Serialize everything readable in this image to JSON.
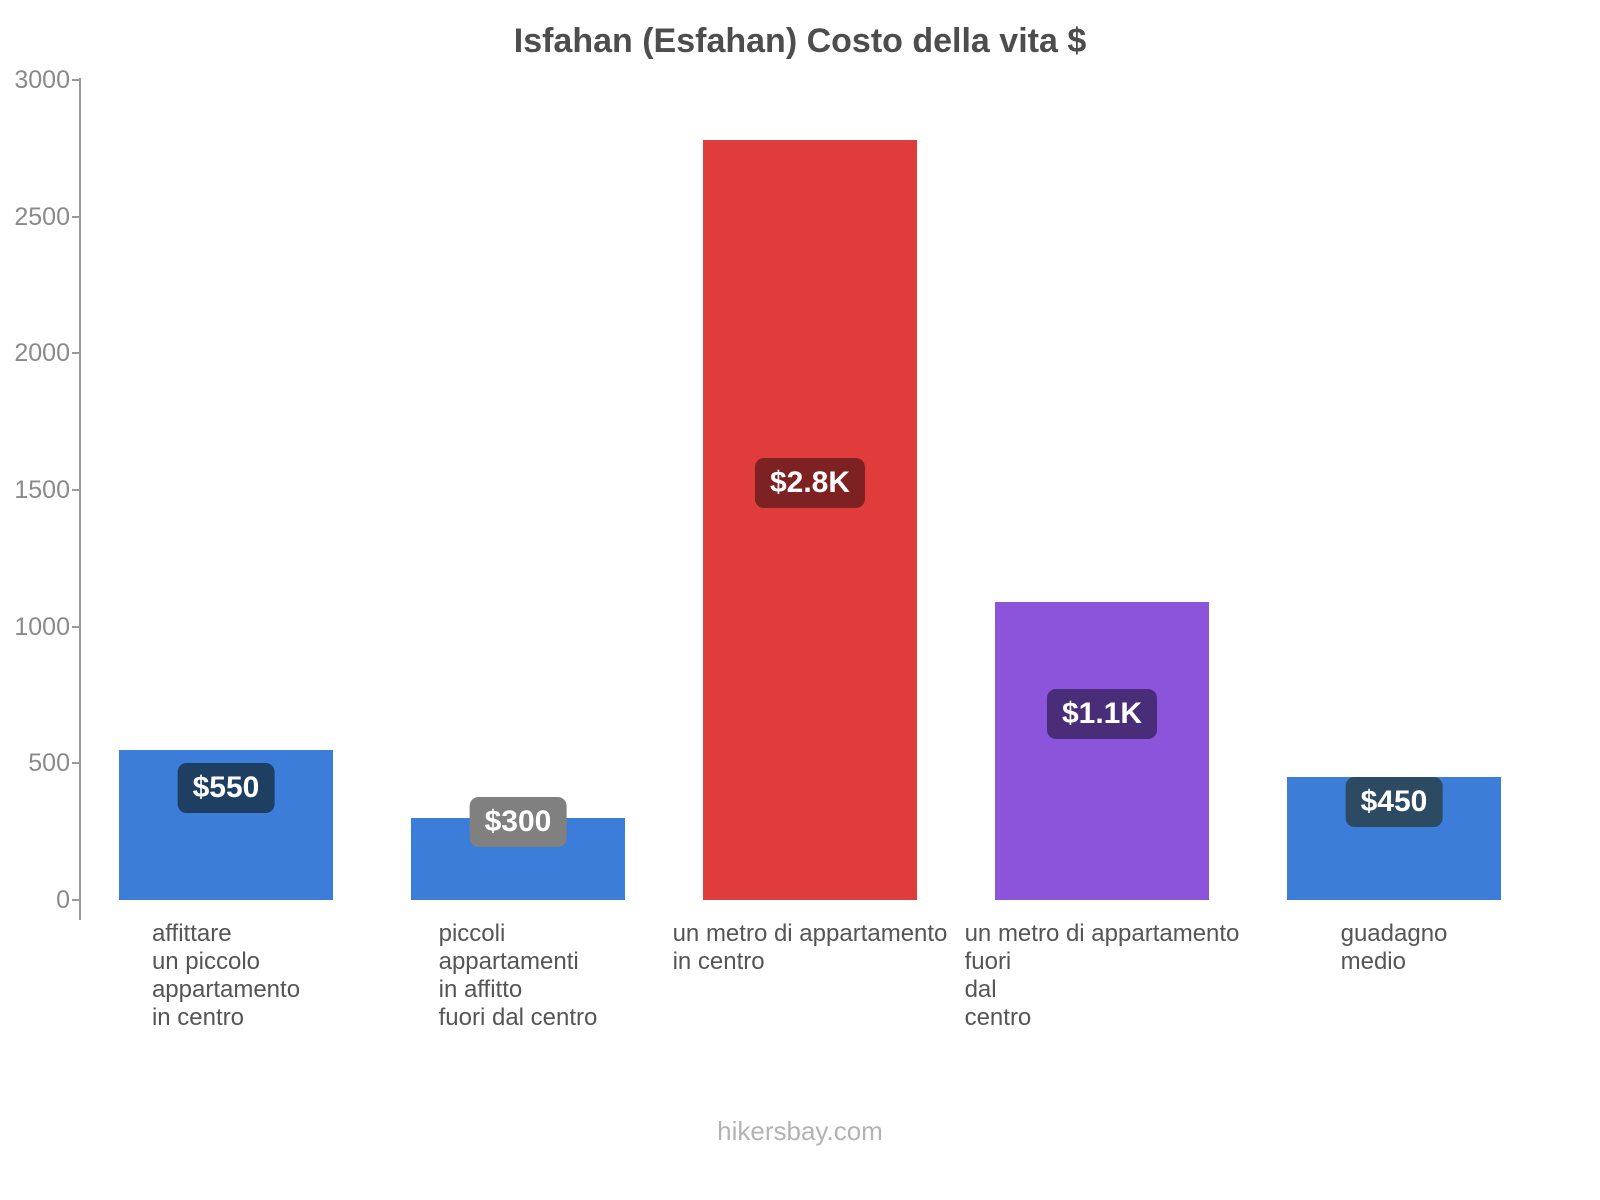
{
  "title": "Isfahan (Esfahan) Costo della vita $",
  "footer": "hikersbay.com",
  "chart_data": {
    "type": "bar",
    "title": "Isfahan (Esfahan) Costo della vita $",
    "xlabel": "",
    "ylabel": "",
    "ylim": [
      0,
      3000
    ],
    "yticks": [
      0,
      500,
      1000,
      1500,
      2000,
      2500,
      3000
    ],
    "grid": false,
    "legend": false,
    "categories": [
      "affittare un piccolo appartamento in centro",
      "piccoli appartamenti in affitto fuori dal centro",
      "un metro di appartamento in centro",
      "un metro di appartamento fuori dal centro",
      "guadagno medio"
    ],
    "values": [
      550,
      300,
      2780,
      1090,
      450
    ],
    "bars": [
      {
        "category_lines": [
          "affittare",
          "un piccolo",
          "appartamento",
          "in centro"
        ],
        "value": 550,
        "value_label": "$550",
        "bar_color": "#3b7dd8",
        "badge_color": "#1e3f61"
      },
      {
        "category_lines": [
          "piccoli",
          "appartamenti",
          "in affitto",
          "fuori dal centro"
        ],
        "value": 300,
        "value_label": "$300",
        "bar_color": "#3b7dd8",
        "badge_color": "#808080"
      },
      {
        "category_lines": [
          "un metro di appartamento",
          "in centro"
        ],
        "value": 2780,
        "value_label": "$2.8K",
        "bar_color": "#e13c3c",
        "badge_color": "#7e2123"
      },
      {
        "category_lines": [
          "un metro di appartamento",
          "fuori",
          "dal",
          "centro"
        ],
        "value": 1090,
        "value_label": "$1.1K",
        "bar_color": "#8b54da",
        "badge_color": "#4a2d78"
      },
      {
        "category_lines": [
          "guadagno",
          "medio"
        ],
        "value": 450,
        "value_label": "$450",
        "bar_color": "#3b7dd8",
        "badge_color": "#2d4a63"
      }
    ]
  }
}
